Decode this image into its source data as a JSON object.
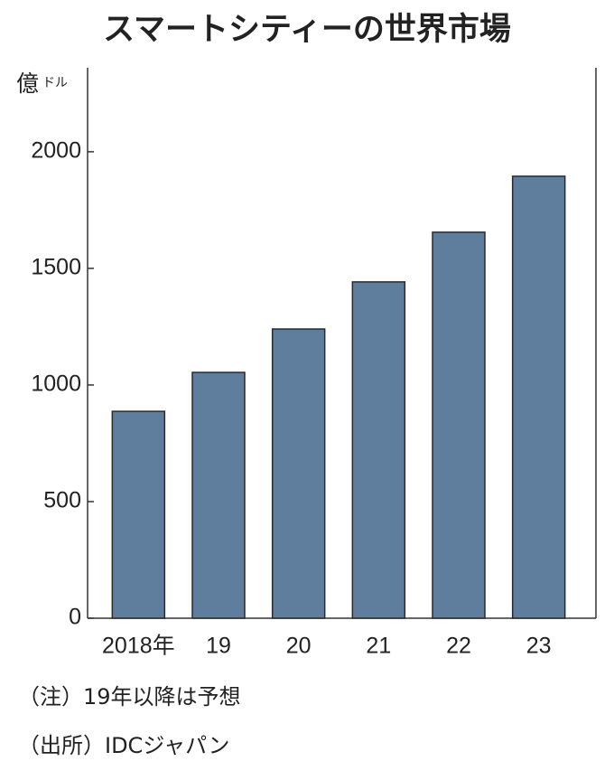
{
  "chart_data": {
    "type": "bar",
    "title": "スマートシティーの世界市場",
    "y_label": "億",
    "y_label_unit": "ドル",
    "categories": [
      "2018年",
      "19",
      "20",
      "21",
      "22",
      "23"
    ],
    "values": [
      887,
      1054,
      1240,
      1442,
      1655,
      1895
    ],
    "color": "#5f7d9c",
    "ylim": [
      0,
      2360
    ],
    "yticks": [
      0,
      500,
      1000,
      1500,
      2000
    ],
    "notes": [
      "（注）19年以降は予想",
      "（出所）IDCジャパン"
    ]
  }
}
